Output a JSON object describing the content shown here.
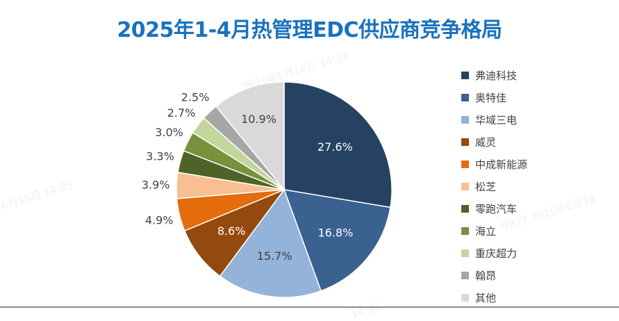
{
  "title": "2025年1-4月热管理EDC供应商竞争格局",
  "chart_data": {
    "type": "pie",
    "title": "2025年1-4月热管理EDC供应商竞争格局",
    "categories": [
      "弗迪科技",
      "奥特佳",
      "华域三电",
      "威灵",
      "中成新能源",
      "松芝",
      "零跑汽车",
      "海立",
      "重庆超力",
      "翰昂",
      "其他"
    ],
    "values": [
      27.6,
      16.8,
      15.7,
      8.6,
      4.9,
      3.9,
      3.3,
      3.0,
      2.7,
      2.5,
      10.9
    ],
    "labels": [
      "27.6%",
      "16.8%",
      "15.7%",
      "8.6%",
      "4.9%",
      "3.9%",
      "3.3%",
      "3.0%",
      "2.7%",
      "2.5%",
      "10.9%"
    ],
    "colors": [
      "#264262",
      "#3a6190",
      "#94b3d8",
      "#944a0e",
      "#e46c0d",
      "#f8c090",
      "#4f6228",
      "#76923c",
      "#c3d69b",
      "#a6a6a6",
      "#d9d9d9"
    ],
    "start_angle_deg": 0,
    "direction": "clockwise",
    "legend_position": "right"
  },
  "watermarks": [
    "2025年6月18日 14:33",
    "6月18日 14:33",
    "9827 2025年6月18",
    "14:33"
  ]
}
